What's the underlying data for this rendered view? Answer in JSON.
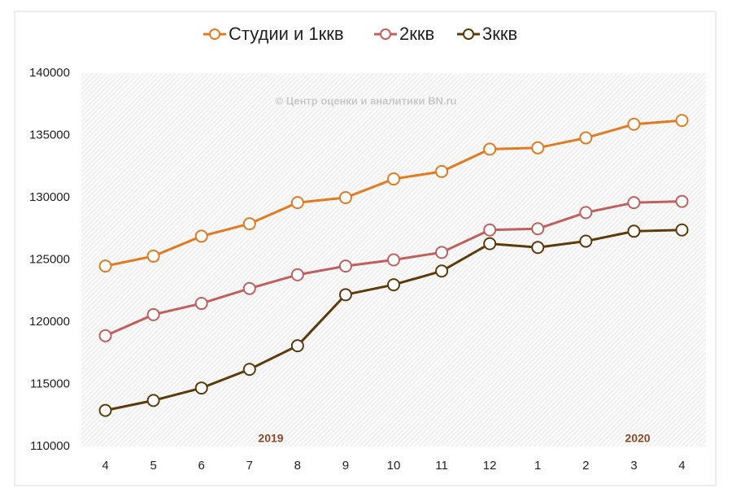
{
  "chart_data": {
    "type": "line",
    "categories": [
      "4",
      "5",
      "6",
      "7",
      "8",
      "9",
      "10",
      "11",
      "12",
      "1",
      "2",
      "3",
      "4"
    ],
    "series": [
      {
        "name": "Студии и 1ккв",
        "color": "#e07b22",
        "values": [
          124500,
          125300,
          126900,
          127900,
          129600,
          130000,
          131500,
          132100,
          133900,
          134000,
          134800,
          135900,
          136200
        ]
      },
      {
        "name": "2ккв",
        "color": "#c0605e",
        "values": [
          118900,
          120600,
          121500,
          122700,
          123800,
          124500,
          125000,
          125600,
          127400,
          127500,
          128800,
          129600,
          129700
        ]
      },
      {
        "name": "3ккв",
        "color": "#5c3a0a",
        "values": [
          112900,
          113700,
          114700,
          116200,
          118100,
          122200,
          123000,
          124100,
          126300,
          126000,
          126500,
          127300,
          127400
        ]
      }
    ],
    "ylim": [
      110000,
      140000
    ],
    "yticks": [
      110000,
      115000,
      120000,
      125000,
      130000,
      135000,
      140000
    ],
    "grid": false,
    "legend": "top",
    "annotations": [
      "© Центр оценки и аналитики BN.ru",
      "2019",
      "2020"
    ]
  }
}
